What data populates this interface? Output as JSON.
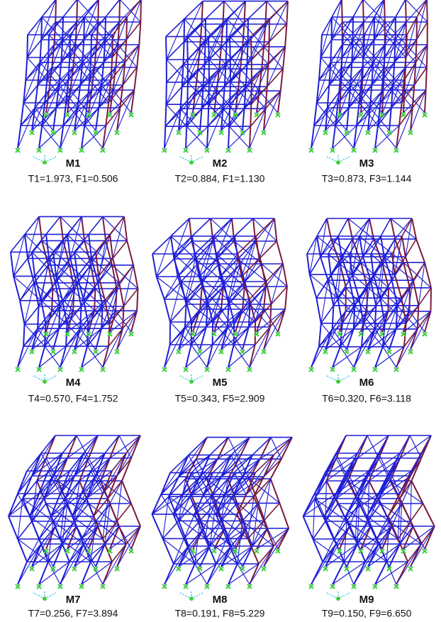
{
  "panels": [
    {
      "label": "M1",
      "caption": "T1=1.973, F1=0.506"
    },
    {
      "label": "M2",
      "caption": "T2=0.884, F1=1.130"
    },
    {
      "label": "M3",
      "caption": "T3=0.873, F3=1.144"
    },
    {
      "label": "M4",
      "caption": "T4=0.570, F4=1.752"
    },
    {
      "label": "M5",
      "caption": "T5=0.343, F5=2.909"
    },
    {
      "label": "M6",
      "caption": "T6=0.320, F6=3.118"
    },
    {
      "label": "M7",
      "caption": "T7=0.256, F7=3.894"
    },
    {
      "label": "M8",
      "caption": "T8=0.191, F8=5.229"
    },
    {
      "label": "M9",
      "caption": "T9=0.150, F9=6.650"
    }
  ]
}
